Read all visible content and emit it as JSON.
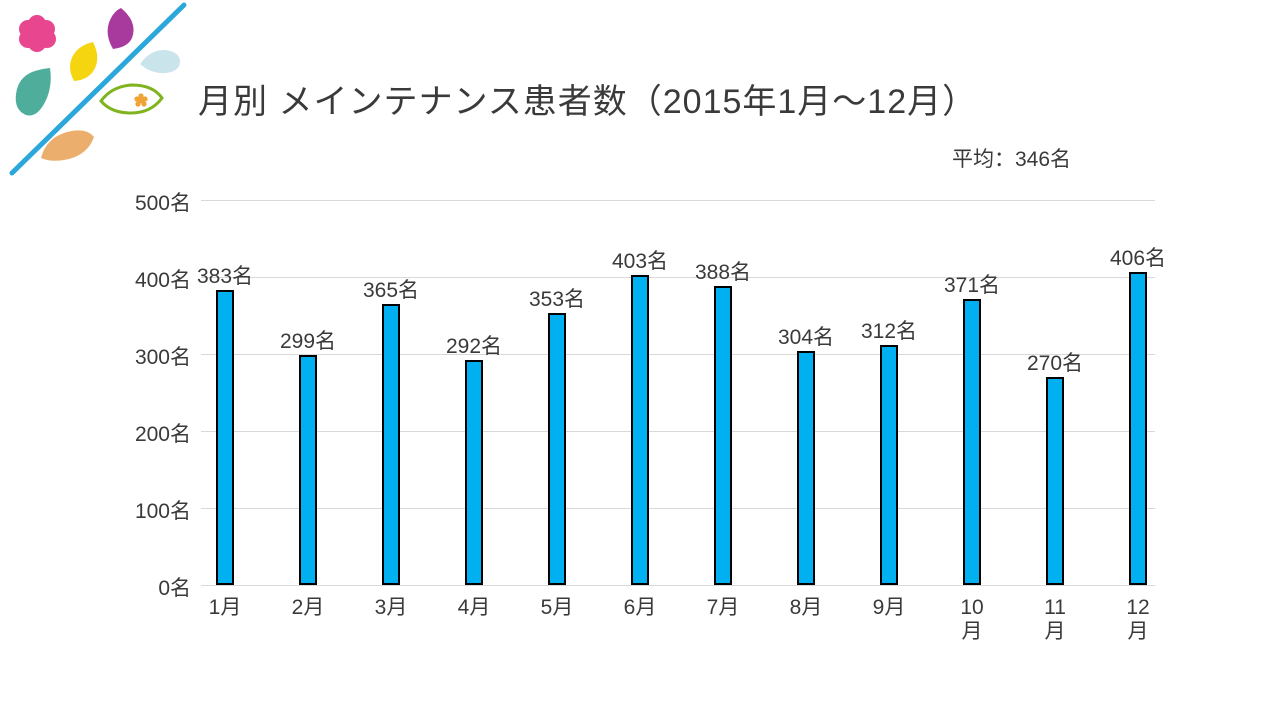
{
  "title": "月別 メインテナンス患者数（2015年1月～12月）",
  "annotation": {
    "average_label": "平均：346名"
  },
  "chart_data": {
    "type": "bar",
    "title": "月別 メインテナンス患者数（2015年1月～12月）",
    "categories": [
      "1月",
      "2月",
      "3月",
      "4月",
      "5月",
      "6月",
      "7月",
      "8月",
      "9月",
      "10月",
      "11月",
      "12月"
    ],
    "x_tick_display": [
      "1月",
      "2月",
      "3月",
      "4月",
      "5月",
      "6月",
      "7月",
      "8月",
      "9月",
      "10\n月",
      "11\n月",
      "12\n月"
    ],
    "values": [
      383,
      299,
      365,
      292,
      353,
      403,
      388,
      304,
      312,
      371,
      270,
      406
    ],
    "data_labels": [
      "383名",
      "299名",
      "365名",
      "292名",
      "353名",
      "403名",
      "388名",
      "304名",
      "312名",
      "371名",
      "270名",
      "406名"
    ],
    "unit": "名",
    "average": 346,
    "average_annotation": "平均：346名",
    "ylim": [
      0,
      500
    ],
    "y_ticks": [
      {
        "value": 0,
        "label": "0名"
      },
      {
        "value": 100,
        "label": "100名"
      },
      {
        "value": 200,
        "label": "200名"
      },
      {
        "value": 300,
        "label": "300名"
      },
      {
        "value": 400,
        "label": "400名"
      },
      {
        "value": 500,
        "label": "500名"
      }
    ],
    "grid": true,
    "legend": false,
    "bar_color": "#00B0F0",
    "bar_border_color": "#000000",
    "gridline_color": "#D9D9D9",
    "text_color": "#3A3A3A"
  },
  "logo": {
    "name": "decorative-leaves-logo",
    "colors": {
      "line": "#2BA7DB",
      "flower_pink": "#E8468F",
      "leaf_purple": "#A83A9E",
      "leaf_yellow": "#F5D410",
      "leaf_teal": "#4FAE9B",
      "drop_lightblue": "#C9E5EB",
      "leaf_green_outline": "#7FB41F",
      "flower_orange": "#F0A232",
      "leaf_orange": "#ECAE6C"
    }
  }
}
